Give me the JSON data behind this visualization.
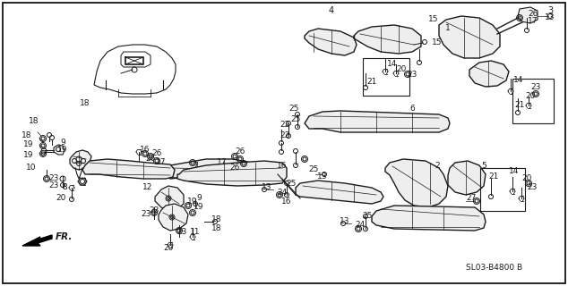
{
  "bg_color": "#ffffff",
  "line_color": "#1a1a1a",
  "text_color": "#1a1a1a",
  "fig_width": 6.34,
  "fig_height": 3.2,
  "dpi": 100,
  "part_number": "SL03-B4800 B",
  "border": true
}
